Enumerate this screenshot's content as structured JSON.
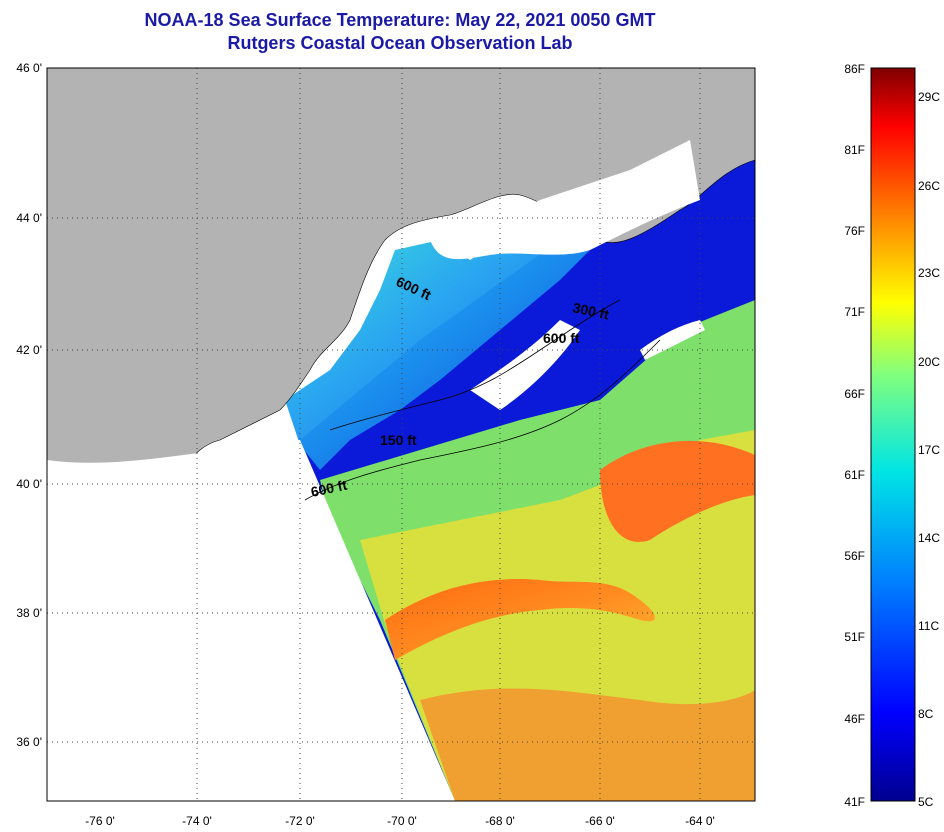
{
  "title": "NOAA-18 Sea Surface Temperature:  May 22, 2021 0050 GMT",
  "subtitle": "Rutgers Coastal Ocean Observation Lab",
  "lat_labels": [
    "46 0'",
    "44 0'",
    "42 0'",
    "40 0'",
    "38 0'",
    "36 0'"
  ],
  "lon_labels": [
    "-76 0'",
    "-74 0'",
    "-72 0'",
    "-70 0'",
    "-68 0'",
    "-66 0'",
    "-64 0'"
  ],
  "contour_labels": [
    "600 ft",
    "300 ft",
    "600 ft",
    "150 ft",
    "600 ft"
  ],
  "colorbar": {
    "f_labels": [
      "86F",
      "81F",
      "76F",
      "71F",
      "66F",
      "61F",
      "56F",
      "51F",
      "46F",
      "41F"
    ],
    "c_labels": [
      "29C",
      "26C",
      "23C",
      "20C",
      "17C",
      "14C",
      "11C",
      "8C",
      "5C"
    ]
  },
  "colors": {
    "land": "#b3b3b3",
    "no_data": "#ffffff",
    "title": "#1a1aa6"
  }
}
